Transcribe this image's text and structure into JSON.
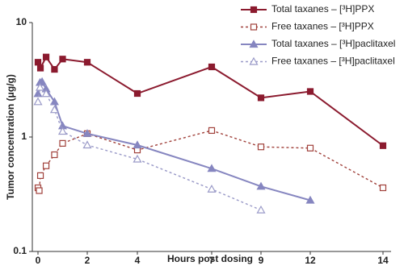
{
  "chart_data": {
    "type": "line",
    "ylabel": "Tumor concentration (μg/g)",
    "xlabel": "Hours post dosing",
    "ylim": [
      0.1,
      10
    ],
    "yticks": [
      0.1,
      1,
      10
    ],
    "log_y": true,
    "xlim": [
      0,
      14
    ],
    "xticks": [
      0,
      2,
      4,
      7,
      9,
      12,
      14
    ],
    "legend": "top-right",
    "series": [
      {
        "name": "Total taxanes – [³H]PPX",
        "color": "#8b1a2e",
        "marker": "square",
        "filled": true,
        "dashed": false,
        "x": [
          0,
          0.1,
          0.33,
          0.67,
          1,
          2,
          4,
          7,
          9,
          12,
          14
        ],
        "values": [
          4.5,
          4.0,
          5.0,
          3.9,
          4.8,
          4.5,
          2.4,
          4.1,
          2.2,
          2.5,
          0.84
        ]
      },
      {
        "name": "Free taxanes – [³H]PPX",
        "color": "#a0403a",
        "marker": "square",
        "filled": false,
        "dashed": true,
        "x": [
          0,
          0.05,
          0.1,
          0.33,
          0.67,
          1,
          2,
          4,
          7,
          9,
          12,
          14
        ],
        "values": [
          0.36,
          0.34,
          0.46,
          0.56,
          0.7,
          0.88,
          1.07,
          0.77,
          1.14,
          0.82,
          0.8,
          0.36
        ]
      },
      {
        "name": "Total taxanes – [³H]paclitaxel",
        "color": "#8686c0",
        "marker": "triangle",
        "filled": true,
        "dashed": false,
        "x": [
          0,
          0.083,
          0.167,
          0.33,
          0.67,
          1,
          2,
          4,
          7,
          9,
          12
        ],
        "values": [
          2.39,
          2.99,
          3.04,
          2.63,
          2.03,
          1.25,
          1.07,
          0.85,
          0.53,
          0.37,
          0.28
        ]
      },
      {
        "name": "Free taxanes – [³H]paclitaxel",
        "color": "#9a9ac8",
        "marker": "triangle",
        "filled": false,
        "dashed": true,
        "x": [
          0,
          0.083,
          0.33,
          0.67,
          1,
          2,
          4,
          7,
          9
        ],
        "values": [
          2.03,
          2.71,
          2.39,
          1.73,
          1.12,
          0.85,
          0.64,
          0.35,
          0.23
        ]
      }
    ]
  }
}
